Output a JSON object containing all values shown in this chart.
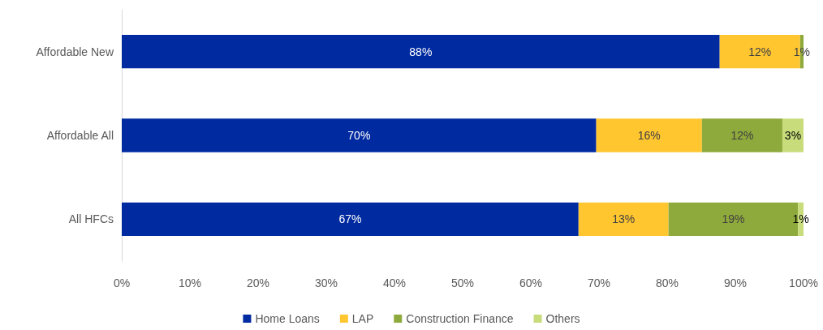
{
  "chart_data": {
    "type": "bar",
    "orientation": "horizontal",
    "stacked": true,
    "categories": [
      "Affordable New",
      "Affordable All",
      "All HFCs"
    ],
    "series": [
      {
        "name": "Home Loans",
        "color": "#002aa0",
        "values": [
          87.7,
          69.6,
          67.0
        ],
        "value_labels": [
          "88%",
          "70%",
          "67%"
        ]
      },
      {
        "name": "LAP",
        "color": "#ffc630",
        "values": [
          11.8,
          15.5,
          13.2
        ],
        "value_labels": [
          "12%",
          "16%",
          "13%"
        ]
      },
      {
        "name": "Construction Finance",
        "color": "#8faa3c",
        "values": [
          0.5,
          11.8,
          19.0
        ],
        "value_labels": [
          "1%",
          "12%",
          "19%"
        ]
      },
      {
        "name": "Others",
        "color": "#c8dc7c",
        "values": [
          null,
          3.1,
          0.8
        ],
        "value_labels": [
          null,
          "3%",
          "1%"
        ]
      }
    ],
    "xlim": [
      0,
      100
    ],
    "xticks": [
      {
        "value": 0,
        "label": "0%"
      },
      {
        "value": 10,
        "label": "10%"
      },
      {
        "value": 20,
        "label": "20%"
      },
      {
        "value": 30,
        "label": "30%"
      },
      {
        "value": 40,
        "label": "40%"
      },
      {
        "value": 50,
        "label": "50%"
      },
      {
        "value": 60,
        "label": "60%"
      },
      {
        "value": 70,
        "label": "70%"
      },
      {
        "value": 80,
        "label": "80%"
      },
      {
        "value": 90,
        "label": "90%"
      },
      {
        "value": 100,
        "label": "100%"
      }
    ],
    "grid": false,
    "legend": "bottom"
  }
}
